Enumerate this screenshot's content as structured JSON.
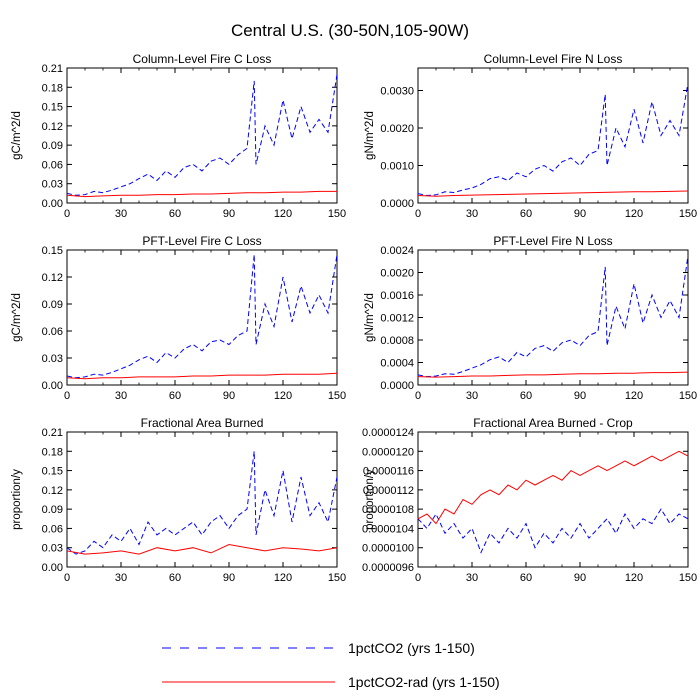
{
  "figure": {
    "title": "Central U.S. (30-50N,105-90W)"
  },
  "legend": {
    "placement": "bottom-center",
    "entries": [
      {
        "label": "1pctCO2 (yrs 1-150)",
        "color": "#0000ff",
        "dash": "dashed"
      },
      {
        "label": "1pctCO2-rad (yrs 1-150)",
        "color": "#ff0000",
        "dash": "solid"
      }
    ]
  },
  "chart_data": [
    {
      "type": "line",
      "title": "Column-Level Fire C Loss",
      "ylabel": "gC/m^2/d",
      "xlabel": "",
      "xlim": [
        0,
        150
      ],
      "ylim": [
        0,
        0.21
      ],
      "xticks": [
        0,
        30,
        60,
        90,
        120,
        150
      ],
      "yticks": [
        "0.00",
        "0.03",
        "0.06",
        "0.09",
        "0.12",
        "0.15",
        "0.18",
        "0.21"
      ],
      "yticks_values": [
        0,
        0.03,
        0.06,
        0.09,
        0.12,
        0.15,
        0.18,
        0.21
      ],
      "series": [
        {
          "name": "1pctCO2 (yrs 1-150)",
          "color": "#0000ff",
          "dash": "dashed",
          "x": [
            0,
            5,
            10,
            15,
            20,
            25,
            30,
            35,
            40,
            45,
            50,
            55,
            60,
            65,
            70,
            75,
            80,
            85,
            90,
            95,
            100,
            104,
            105,
            110,
            115,
            120,
            125,
            130,
            135,
            140,
            145,
            150
          ],
          "y": [
            0.015,
            0.012,
            0.013,
            0.018,
            0.016,
            0.02,
            0.025,
            0.03,
            0.038,
            0.045,
            0.035,
            0.05,
            0.04,
            0.055,
            0.06,
            0.05,
            0.065,
            0.07,
            0.06,
            0.075,
            0.085,
            0.19,
            0.06,
            0.12,
            0.09,
            0.16,
            0.1,
            0.15,
            0.11,
            0.13,
            0.11,
            0.2
          ]
        },
        {
          "name": "1pctCO2-rad (yrs 1-150)",
          "color": "#ff0000",
          "dash": "solid",
          "x": [
            0,
            10,
            20,
            30,
            40,
            50,
            60,
            70,
            80,
            90,
            100,
            110,
            120,
            130,
            140,
            150
          ],
          "y": [
            0.012,
            0.01,
            0.011,
            0.012,
            0.012,
            0.013,
            0.013,
            0.014,
            0.014,
            0.015,
            0.016,
            0.016,
            0.017,
            0.017,
            0.018,
            0.018
          ]
        }
      ]
    },
    {
      "type": "line",
      "title": "Column-Level Fire N Loss",
      "ylabel": "gN/m^2/d",
      "xlabel": "",
      "xlim": [
        0,
        150
      ],
      "ylim": [
        0,
        0.0036
      ],
      "xticks": [
        0,
        30,
        60,
        90,
        120,
        150
      ],
      "yticks": [
        "0.0000",
        "0.0010",
        "0.0020",
        "0.0030"
      ],
      "yticks_values": [
        0,
        0.001,
        0.002,
        0.003
      ],
      "series": [
        {
          "name": "1pctCO2 (yrs 1-150)",
          "color": "#0000ff",
          "dash": "dashed",
          "x": [
            0,
            5,
            10,
            15,
            20,
            25,
            30,
            35,
            40,
            45,
            50,
            55,
            60,
            65,
            70,
            75,
            80,
            85,
            90,
            95,
            100,
            104,
            105,
            110,
            115,
            120,
            125,
            130,
            135,
            140,
            145,
            150
          ],
          "y": [
            0.00025,
            0.0002,
            0.00022,
            0.0003,
            0.00028,
            0.00035,
            0.0004,
            0.0005,
            0.00065,
            0.0007,
            0.0006,
            0.0008,
            0.0007,
            0.0009,
            0.001,
            0.00085,
            0.0011,
            0.0012,
            0.001,
            0.0013,
            0.0014,
            0.0029,
            0.001,
            0.002,
            0.0015,
            0.0025,
            0.0016,
            0.0027,
            0.0018,
            0.0022,
            0.0018,
            0.0032
          ]
        },
        {
          "name": "1pctCO2-rad (yrs 1-150)",
          "color": "#ff0000",
          "dash": "solid",
          "x": [
            0,
            10,
            20,
            30,
            40,
            50,
            60,
            70,
            80,
            90,
            100,
            110,
            120,
            130,
            140,
            150
          ],
          "y": [
            0.0002,
            0.00018,
            0.0002,
            0.00021,
            0.00022,
            0.00023,
            0.00024,
            0.00025,
            0.00026,
            0.00027,
            0.00028,
            0.00029,
            0.0003,
            0.0003,
            0.00031,
            0.00032
          ]
        }
      ]
    },
    {
      "type": "line",
      "title": "PFT-Level Fire C Loss",
      "ylabel": "gC/m^2/d",
      "xlabel": "",
      "xlim": [
        0,
        150
      ],
      "ylim": [
        0,
        0.15
      ],
      "xticks": [
        0,
        30,
        60,
        90,
        120,
        150
      ],
      "yticks": [
        "0.00",
        "0.03",
        "0.06",
        "0.09",
        "0.12",
        "0.15"
      ],
      "yticks_values": [
        0,
        0.03,
        0.06,
        0.09,
        0.12,
        0.15
      ],
      "series": [
        {
          "name": "1pctCO2 (yrs 1-150)",
          "color": "#0000ff",
          "dash": "dashed",
          "x": [
            0,
            5,
            10,
            15,
            20,
            25,
            30,
            35,
            40,
            45,
            50,
            55,
            60,
            65,
            70,
            75,
            80,
            85,
            90,
            95,
            100,
            104,
            105,
            110,
            115,
            120,
            125,
            130,
            135,
            140,
            145,
            150
          ],
          "y": [
            0.01,
            0.008,
            0.009,
            0.012,
            0.011,
            0.014,
            0.018,
            0.022,
            0.028,
            0.032,
            0.025,
            0.036,
            0.03,
            0.04,
            0.045,
            0.038,
            0.048,
            0.05,
            0.045,
            0.055,
            0.06,
            0.145,
            0.045,
            0.09,
            0.065,
            0.12,
            0.07,
            0.11,
            0.08,
            0.1,
            0.08,
            0.145
          ]
        },
        {
          "name": "1pctCO2-rad (yrs 1-150)",
          "color": "#ff0000",
          "dash": "solid",
          "x": [
            0,
            10,
            20,
            30,
            40,
            50,
            60,
            70,
            80,
            90,
            100,
            110,
            120,
            130,
            140,
            150
          ],
          "y": [
            0.008,
            0.007,
            0.008,
            0.008,
            0.009,
            0.009,
            0.009,
            0.01,
            0.01,
            0.011,
            0.011,
            0.011,
            0.012,
            0.012,
            0.012,
            0.013
          ]
        }
      ]
    },
    {
      "type": "line",
      "title": "PFT-Level Fire N Loss",
      "ylabel": "gN/m^2/d",
      "xlabel": "",
      "xlim": [
        0,
        150
      ],
      "ylim": [
        0,
        0.0024
      ],
      "xticks": [
        0,
        30,
        60,
        90,
        120,
        150
      ],
      "yticks": [
        "0.0000",
        "0.0004",
        "0.0008",
        "0.0012",
        "0.0016",
        "0.0020",
        "0.0024"
      ],
      "yticks_values": [
        0,
        0.0004,
        0.0008,
        0.0012,
        0.0016,
        0.002,
        0.0024
      ],
      "series": [
        {
          "name": "1pctCO2 (yrs 1-150)",
          "color": "#0000ff",
          "dash": "dashed",
          "x": [
            0,
            5,
            10,
            15,
            20,
            25,
            30,
            35,
            40,
            45,
            50,
            55,
            60,
            65,
            70,
            75,
            80,
            85,
            90,
            95,
            100,
            104,
            105,
            110,
            115,
            120,
            125,
            130,
            135,
            140,
            145,
            150
          ],
          "y": [
            0.00018,
            0.00015,
            0.00016,
            0.0002,
            0.00019,
            0.00024,
            0.0003,
            0.00036,
            0.00045,
            0.0005,
            0.0004,
            0.00058,
            0.0005,
            0.00065,
            0.0007,
            0.0006,
            0.00075,
            0.0008,
            0.0007,
            0.00088,
            0.00095,
            0.0021,
            0.0007,
            0.0014,
            0.001,
            0.0018,
            0.0011,
            0.0016,
            0.0012,
            0.0015,
            0.0012,
            0.0023
          ]
        },
        {
          "name": "1pctCO2-rad (yrs 1-150)",
          "color": "#ff0000",
          "dash": "solid",
          "x": [
            0,
            10,
            20,
            30,
            40,
            50,
            60,
            70,
            80,
            90,
            100,
            110,
            120,
            130,
            140,
            150
          ],
          "y": [
            0.00015,
            0.00014,
            0.00015,
            0.00016,
            0.00016,
            0.00017,
            0.00018,
            0.00018,
            0.00019,
            0.0002,
            0.0002,
            0.00021,
            0.00021,
            0.00022,
            0.00022,
            0.00023
          ]
        }
      ]
    },
    {
      "type": "line",
      "title": "Fractional Area Burned",
      "ylabel": "proportion/y",
      "xlabel": "",
      "xlim": [
        0,
        150
      ],
      "ylim": [
        0,
        0.21
      ],
      "xticks": [
        0,
        30,
        60,
        90,
        120,
        150
      ],
      "yticks": [
        "0.00",
        "0.03",
        "0.06",
        "0.09",
        "0.12",
        "0.15",
        "0.18",
        "0.21"
      ],
      "yticks_values": [
        0,
        0.03,
        0.06,
        0.09,
        0.12,
        0.15,
        0.18,
        0.21
      ],
      "series": [
        {
          "name": "1pctCO2 (yrs 1-150)",
          "color": "#0000ff",
          "dash": "dashed",
          "x": [
            0,
            5,
            10,
            15,
            20,
            25,
            30,
            35,
            40,
            45,
            50,
            55,
            60,
            65,
            70,
            75,
            80,
            85,
            90,
            95,
            100,
            104,
            105,
            110,
            115,
            120,
            125,
            130,
            135,
            140,
            145,
            150
          ],
          "y": [
            0.03,
            0.02,
            0.025,
            0.04,
            0.03,
            0.05,
            0.04,
            0.06,
            0.035,
            0.07,
            0.05,
            0.06,
            0.05,
            0.06,
            0.07,
            0.05,
            0.07,
            0.08,
            0.06,
            0.08,
            0.09,
            0.18,
            0.05,
            0.12,
            0.08,
            0.15,
            0.07,
            0.14,
            0.08,
            0.1,
            0.07,
            0.14
          ]
        },
        {
          "name": "1pctCO2-rad (yrs 1-150)",
          "color": "#ff0000",
          "dash": "solid",
          "x": [
            0,
            10,
            20,
            30,
            40,
            50,
            60,
            70,
            80,
            90,
            100,
            110,
            120,
            130,
            140,
            150
          ],
          "y": [
            0.025,
            0.02,
            0.022,
            0.025,
            0.02,
            0.03,
            0.025,
            0.03,
            0.022,
            0.035,
            0.03,
            0.025,
            0.03,
            0.028,
            0.025,
            0.03
          ]
        }
      ]
    },
    {
      "type": "line",
      "title": "Fractional Area Burned - Crop",
      "ylabel": "proportion/y",
      "xlabel": "",
      "xlim": [
        0,
        150
      ],
      "ylim": [
        9.6e-06,
        1.24e-05
      ],
      "xticks": [
        0,
        30,
        60,
        90,
        120,
        150
      ],
      "yticks": [
        "0.0000096",
        "0.0000100",
        "0.0000104",
        "0.0000108",
        "0.0000112",
        "0.0000116",
        "0.0000120",
        "0.0000124"
      ],
      "yticks_values": [
        9.6e-06,
        1e-05,
        1.04e-05,
        1.08e-05,
        1.12e-05,
        1.16e-05,
        1.2e-05,
        1.24e-05
      ],
      "series": [
        {
          "name": "1pctCO2 (yrs 1-150)",
          "color": "#0000ff",
          "dash": "dashed",
          "x": [
            0,
            5,
            10,
            15,
            20,
            25,
            30,
            35,
            40,
            45,
            50,
            55,
            60,
            65,
            70,
            75,
            80,
            85,
            90,
            95,
            100,
            105,
            110,
            115,
            120,
            125,
            130,
            135,
            140,
            145,
            150
          ],
          "y": [
            1.06e-05,
            1.04e-05,
            1.07e-05,
            1.03e-05,
            1.05e-05,
            1.02e-05,
            1.04e-05,
            9.9e-06,
            1.03e-05,
            1.01e-05,
            1.04e-05,
            1.02e-05,
            1.05e-05,
            1e-05,
            1.03e-05,
            1.01e-05,
            1.04e-05,
            1.02e-05,
            1.05e-05,
            1.02e-05,
            1.04e-05,
            1.06e-05,
            1.03e-05,
            1.07e-05,
            1.04e-05,
            1.06e-05,
            1.05e-05,
            1.08e-05,
            1.05e-05,
            1.07e-05,
            1.06e-05
          ]
        },
        {
          "name": "1pctCO2-rad (yrs 1-150)",
          "color": "#ff0000",
          "dash": "solid",
          "x": [
            0,
            5,
            10,
            15,
            20,
            25,
            30,
            35,
            40,
            45,
            50,
            55,
            60,
            65,
            70,
            75,
            80,
            85,
            90,
            95,
            100,
            105,
            110,
            115,
            120,
            125,
            130,
            135,
            140,
            145,
            150
          ],
          "y": [
            1.06e-05,
            1.07e-05,
            1.05e-05,
            1.08e-05,
            1.07e-05,
            1.1e-05,
            1.09e-05,
            1.11e-05,
            1.12e-05,
            1.11e-05,
            1.13e-05,
            1.12e-05,
            1.14e-05,
            1.13e-05,
            1.14e-05,
            1.15e-05,
            1.14e-05,
            1.16e-05,
            1.15e-05,
            1.16e-05,
            1.17e-05,
            1.16e-05,
            1.17e-05,
            1.18e-05,
            1.17e-05,
            1.18e-05,
            1.19e-05,
            1.18e-05,
            1.19e-05,
            1.2e-05,
            1.19e-05
          ]
        }
      ]
    }
  ]
}
